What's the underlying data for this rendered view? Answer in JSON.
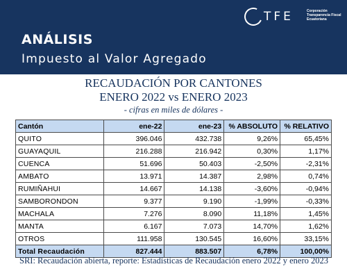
{
  "header": {
    "kicker": "ANÁLISIS",
    "subtitle": "Impuesto al Valor Agregado",
    "logo_word": "TFE",
    "logo_tag": "Corporación Transparencia Fiscal Ecuatoriana"
  },
  "title": {
    "line1": "RECAUDACIÓN POR CANTONES",
    "line2": "ENERO 2022 vs ENERO 2023",
    "line3": "- cifras en miles de dólares -"
  },
  "table": {
    "columns": [
      "Cantón",
      "ene-22",
      "ene-23",
      "% ABSOLUTO",
      "% RELATIVO"
    ],
    "rows": [
      [
        "QUITO",
        "396.046",
        "432.738",
        "9,26%",
        "65,45%"
      ],
      [
        "GUAYAQUIL",
        "216.288",
        "216.942",
        "0,30%",
        "1,17%"
      ],
      [
        "CUENCA",
        "51.696",
        "50.403",
        "-2,50%",
        "-2,31%"
      ],
      [
        "AMBATO",
        "13.971",
        "14.387",
        "2,98%",
        "0,74%"
      ],
      [
        "RUMIÑAHUI",
        "14.667",
        "14.138",
        "-3,60%",
        "-0,94%"
      ],
      [
        "SAMBORONDON",
        "9.377",
        "9.190",
        "-1,99%",
        "-0,33%"
      ],
      [
        "MACHALA",
        "7.276",
        "8.090",
        "11,18%",
        "1,45%"
      ],
      [
        "MANTA",
        "6.167",
        "7.073",
        "14,70%",
        "1,62%"
      ],
      [
        "OTROS",
        "111.958",
        "130.545",
        "16,60%",
        "33,15%"
      ]
    ],
    "total": [
      "Total Recaudación",
      "827.444",
      "883.507",
      "6,78%",
      "100,00%"
    ]
  },
  "source": "SRI: Recaudación abierta, reporte: Estadísticas de Recaudación enero 2022 y enero 2023"
}
